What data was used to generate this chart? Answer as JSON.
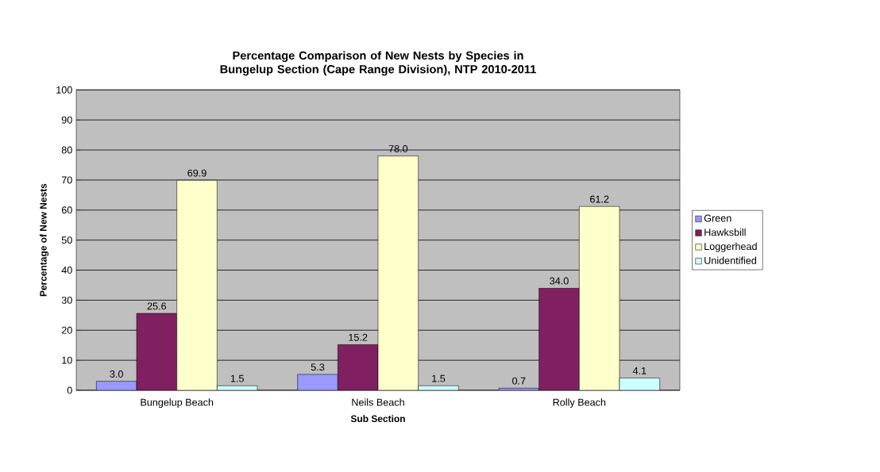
{
  "chart_data": {
    "type": "bar",
    "title": "Percentage Comparison of New Nests by Species in Bungelup Section (Cape Range Division), NTP 2010-2011",
    "xlabel": "Sub Section",
    "ylabel": "Percentage of New Nests",
    "categories": [
      "Bungelup Beach",
      "Neils Beach",
      "Rolly Beach"
    ],
    "series": [
      {
        "name": "Green",
        "color": "#9999ff",
        "values": [
          3.0,
          5.3,
          0.7
        ],
        "value_labels": [
          "3.0",
          "5.3",
          "0.7"
        ]
      },
      {
        "name": "Hawksbill",
        "color": "#802060",
        "values": [
          25.6,
          15.2,
          34.0
        ],
        "value_labels": [
          "25.6",
          "15.2",
          "34.0"
        ]
      },
      {
        "name": "Loggerhead",
        "color": "#ffffcc",
        "values": [
          69.9,
          78.0,
          61.2
        ],
        "value_labels": [
          "69.9",
          "78.0",
          "61.2"
        ]
      },
      {
        "name": "Unidentified",
        "color": "#ccffff",
        "values": [
          1.5,
          1.5,
          4.1
        ],
        "value_labels": [
          "1.5",
          "1.5",
          "4.1"
        ]
      }
    ],
    "ylim": [
      0,
      100
    ],
    "yticks": [
      0,
      10,
      20,
      30,
      40,
      50,
      60,
      70,
      80,
      90,
      100
    ],
    "grid": "y",
    "legend": "right"
  }
}
